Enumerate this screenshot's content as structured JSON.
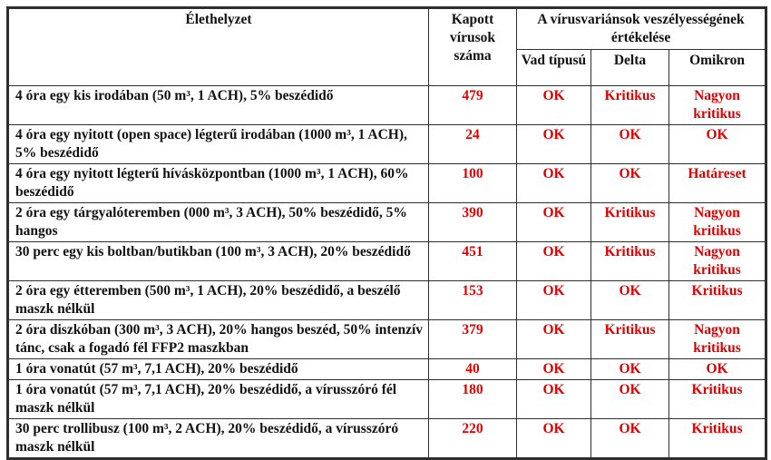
{
  "table": {
    "header": {
      "situation": "Élethelyzet",
      "virus_count": "Kapott vírusok száma",
      "assessment_group": "A vírusvariánsok veszélyességének értékelése",
      "variant_wild": "Vad típusú",
      "variant_delta": "Delta",
      "variant_omicron": "Omikron"
    },
    "rows": [
      {
        "situation": "4 óra egy kis irodában (50 m³, 1 ACH), 5% beszédidő",
        "count": "479",
        "vad": "OK",
        "delta": "Kritikus",
        "omikron": "Nagyon kritikus"
      },
      {
        "situation": "4 óra egy nyitott (open space) légterű  irodában (1000 m³, 1 ACH), 5% beszédidő",
        "count": "24",
        "vad": "OK",
        "delta": "OK",
        "omikron": "OK"
      },
      {
        "situation": "4 óra egy nyitott légterű hívásközpontban (1000 m³, 1 ACH), 60% beszédidő",
        "count": "100",
        "vad": "OK",
        "delta": "OK",
        "omikron": "Határeset"
      },
      {
        "situation": "2 óra egy tárgyalóteremben (000 m³, 3 ACH), 50% beszédidő, 5% hangos",
        "count": "390",
        "vad": "OK",
        "delta": "Kritikus",
        "omikron": "Nagyon kritikus"
      },
      {
        "situation": "30 perc egy kis boltban/butikban (100 m³, 3 ACH), 20% beszédidő",
        "count": "451",
        "vad": "OK",
        "delta": "Kritikus",
        "omikron": "Nagyon kritikus"
      },
      {
        "situation": "2 óra egy étteremben (500 m³, 1 ACH), 20% beszédidő, a beszélő maszk nélkül",
        "count": "153",
        "vad": "OK",
        "delta": "OK",
        "omikron": "Kritikus"
      },
      {
        "situation": "2 óra diszkóban (300 m³, 3 ACH), 20% hangos beszéd, 50% intenzív tánc, csak a fogadó fél FFP2 maszkban",
        "count": "379",
        "vad": "OK",
        "delta": "Kritikus",
        "omikron": "Nagyon kritikus"
      },
      {
        "situation": "1 óra vonatút (57 m³, 7,1 ACH), 20% beszédidő",
        "count": "40",
        "vad": "OK",
        "delta": "OK",
        "omikron": "OK"
      },
      {
        "situation": "1 óra vonatút (57 m³, 7,1 ACH), 20% beszédidő, a vírusszóró fél maszk nélkül",
        "count": "180",
        "vad": "OK",
        "delta": "OK",
        "omikron": "Kritikus"
      },
      {
        "situation": "30 perc trollibusz (100 m³, 2 ACH), 20% beszédidő, a vírusszóró maszk nélkül",
        "count": "220",
        "vad": "OK",
        "delta": "OK",
        "omikron": "Kritikus"
      }
    ],
    "colors": {
      "value_red": "#e00000",
      "text_black": "#111111",
      "border": "#2e2e2e",
      "background": "#ffffff"
    }
  }
}
